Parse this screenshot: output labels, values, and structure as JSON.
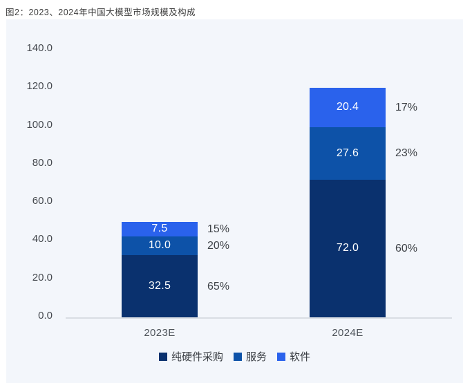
{
  "figure": {
    "title": "图2：2023、2024年中国大模型市场规模及构成"
  },
  "chart_data": {
    "type": "bar",
    "stacked": true,
    "title": "图2：2023、2024年中国大模型市场规模及构成",
    "categories": [
      "2023E",
      "2024E"
    ],
    "series": [
      {
        "name": "纯硬件采购",
        "color": "#0a316e",
        "values": [
          32.5,
          72.0
        ],
        "value_labels": [
          "32.5",
          "72.0"
        ],
        "pct_labels": [
          "65%",
          "60%"
        ]
      },
      {
        "name": "服务",
        "color": "#0d52a8",
        "values": [
          10.0,
          27.6
        ],
        "value_labels": [
          "10.0",
          "27.6"
        ],
        "pct_labels": [
          "20%",
          "23%"
        ]
      },
      {
        "name": "软件",
        "color": "#2a62ec",
        "values": [
          7.5,
          20.4
        ],
        "value_labels": [
          "7.5",
          "20.4"
        ],
        "pct_labels": [
          "15%",
          "17%"
        ]
      }
    ],
    "stack_order_bottom_to_top": [
      "纯硬件采购",
      "服务",
      "软件"
    ],
    "totals": [
      50.0,
      120.0
    ],
    "xlabel": "",
    "ylabel": "",
    "ylim": [
      0,
      140
    ],
    "yticks": [
      0,
      20,
      40,
      60,
      80,
      100,
      120,
      140
    ],
    "ytick_format": "one_decimal",
    "grid": false,
    "legend_position": "bottom",
    "colors": {
      "panel_bg": "#f3f6fb",
      "axis_line": "#d9dde3",
      "tick_text": "#45494f",
      "bar_value_text": "#ffffff",
      "pct_text": "#3e4247",
      "x_label_text": "#4d535a",
      "legend_text": "#383c42",
      "title_text": "#3f3f3f"
    }
  }
}
